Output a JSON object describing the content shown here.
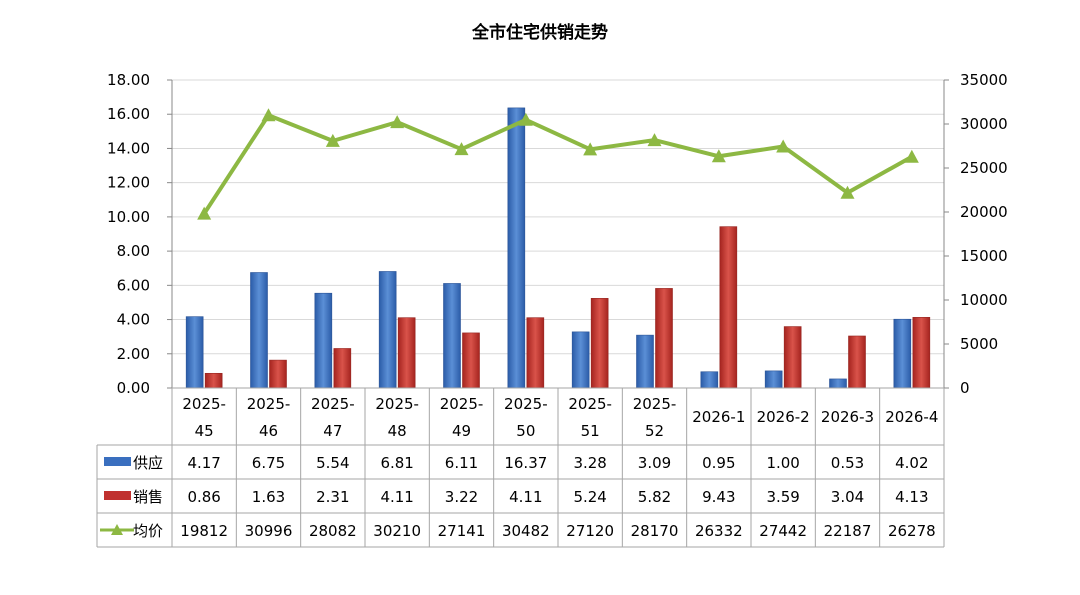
{
  "chart_data": {
    "type": "bar",
    "title": "全市住宅供销走势",
    "categories": [
      "2025-45",
      "2025-46",
      "2025-47",
      "2025-48",
      "2025-49",
      "2025-50",
      "2025-51",
      "2025-52",
      "2026-1",
      "2026-2",
      "2026-3",
      "2026-4"
    ],
    "series": [
      {
        "name": "供应",
        "type": "bar",
        "axis": "left",
        "color": "#3a6fbf",
        "values": [
          4.17,
          6.75,
          5.54,
          6.81,
          6.11,
          16.37,
          3.28,
          3.09,
          0.95,
          1.0,
          0.53,
          4.02
        ]
      },
      {
        "name": "销售",
        "type": "bar",
        "axis": "left",
        "color": "#c0312f",
        "values": [
          0.86,
          1.63,
          2.31,
          4.11,
          3.22,
          4.11,
          5.24,
          5.82,
          9.43,
          3.59,
          3.04,
          4.13
        ]
      },
      {
        "name": "均价",
        "type": "line",
        "axis": "right",
        "color": "#8db843",
        "values": [
          19812,
          30996,
          28082,
          30210,
          27141,
          30482,
          27120,
          28170,
          26332,
          27442,
          22187,
          26278
        ]
      }
    ],
    "left_axis": {
      "min": 0,
      "max": 18,
      "step": 2,
      "tick_labels": [
        "0.00",
        "2.00",
        "4.00",
        "6.00",
        "8.00",
        "10.00",
        "12.00",
        "14.00",
        "16.00",
        "18.00"
      ]
    },
    "right_axis": {
      "min": 0,
      "max": 35000,
      "step": 5000,
      "tick_labels": [
        "0",
        "5000",
        "10000",
        "15000",
        "20000",
        "25000",
        "30000",
        "35000"
      ]
    },
    "data_table": {
      "rows": [
        {
          "label": "供应",
          "cells": [
            "4.17",
            "6.75",
            "5.54",
            "6.81",
            "6.11",
            "16.37",
            "3.28",
            "3.09",
            "0.95",
            "1.00",
            "0.53",
            "4.02"
          ]
        },
        {
          "label": "销售",
          "cells": [
            "0.86",
            "1.63",
            "2.31",
            "4.11",
            "3.22",
            "4.11",
            "5.24",
            "5.82",
            "9.43",
            "3.59",
            "3.04",
            "4.13"
          ]
        },
        {
          "label": "均价",
          "cells": [
            "19812",
            "30996",
            "28082",
            "30210",
            "27141",
            "30482",
            "27120",
            "28170",
            "26332",
            "27442",
            "22187",
            "26278"
          ]
        }
      ]
    },
    "grid": true,
    "legend": "data-table"
  }
}
